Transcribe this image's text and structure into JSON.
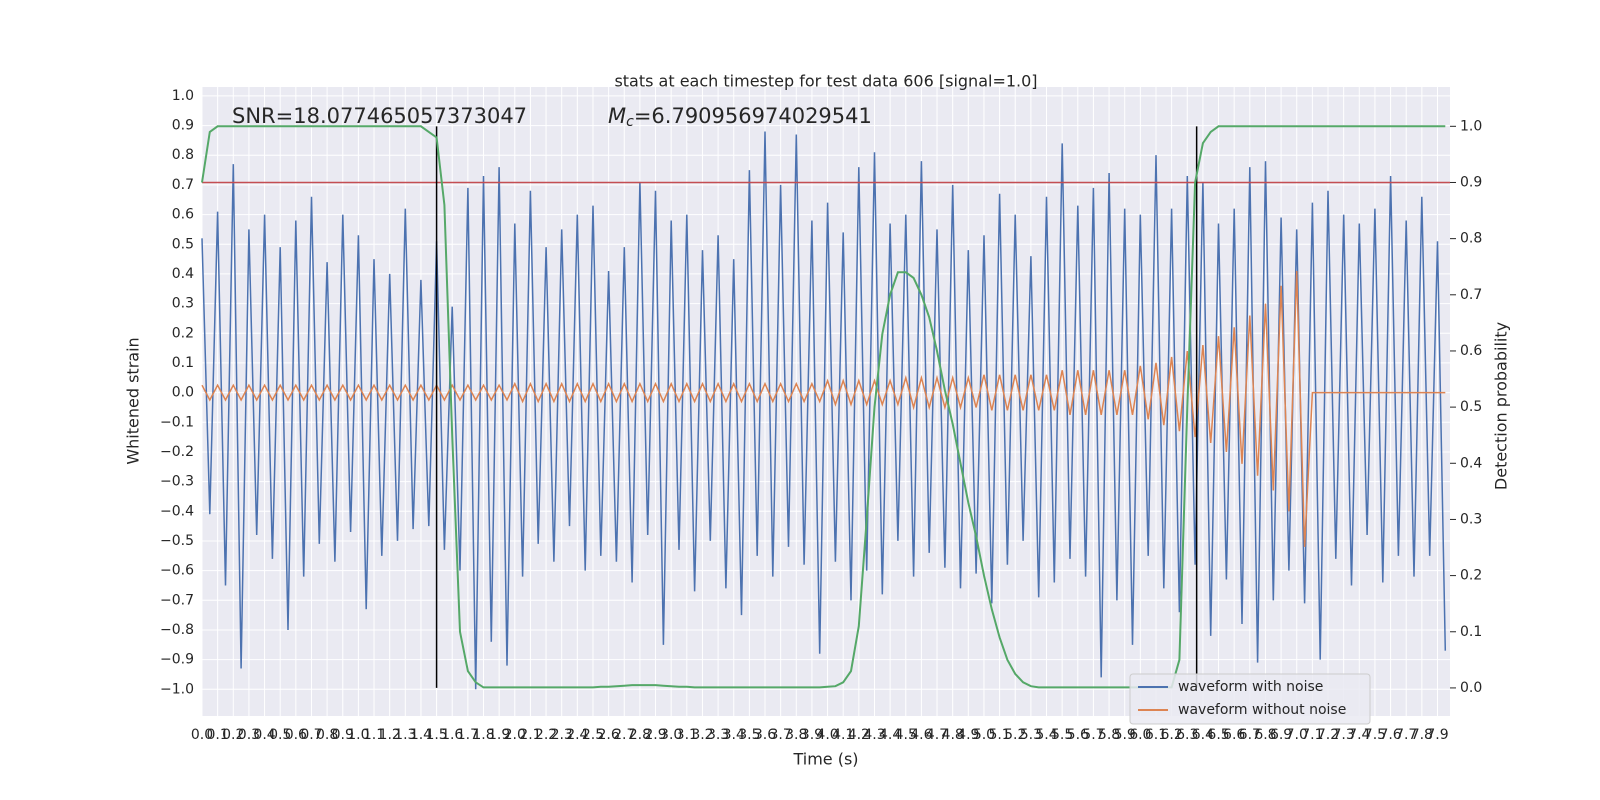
{
  "chart_data": {
    "type": "line",
    "title": "stats at each timestep for test data 606 [signal=1.0]",
    "x_label": "Time (s)",
    "y_label": "Whitened strain",
    "y2_label": "Detection probability",
    "annotations": [
      "SNR=18.077465057373047",
      "=6.790956974029541"
    ],
    "mc_symbol": "M",
    "mc_subscript": "c",
    "grid": true,
    "legend": "lower right",
    "xlim": [
      0,
      7.98
    ],
    "ylim": [
      -1.09,
      1.03
    ],
    "y2lim": [
      -0.05,
      1.07
    ],
    "xticks": [
      {
        "value": 0,
        "label": "0.0"
      },
      0.1,
      0.2,
      0.3,
      0.4,
      0.5,
      0.6,
      0.7,
      0.8,
      0.9,
      {
        "value": 1,
        "label": "1.0"
      },
      1.1,
      1.2,
      1.3,
      1.4,
      1.5,
      1.6,
      1.7,
      1.8,
      1.9,
      {
        "value": 2,
        "label": "2.0"
      },
      2.1,
      2.2,
      2.3,
      2.4,
      2.5,
      2.6,
      2.7,
      2.8,
      2.9,
      {
        "value": 3,
        "label": "3.0"
      },
      3.1,
      3.2,
      3.3,
      3.4,
      3.5,
      3.6,
      3.7,
      3.8,
      3.9,
      {
        "value": 4,
        "label": "4.0"
      },
      4.1,
      4.2,
      4.3,
      4.4,
      4.5,
      4.6,
      4.7,
      4.8,
      4.9,
      {
        "value": 5,
        "label": "5.0"
      },
      5.1,
      5.2,
      5.3,
      5.4,
      5.5,
      5.6,
      5.7,
      5.8,
      5.9,
      {
        "value": 6,
        "label": "6.0"
      },
      6.1,
      6.2,
      6.3,
      6.4,
      6.5,
      6.6,
      6.7,
      6.8,
      6.9,
      {
        "value": 7,
        "label": "7.0"
      },
      7.1,
      7.2,
      7.3,
      7.4,
      7.5,
      7.6,
      7.7,
      7.8,
      7.9
    ],
    "yticks": [
      {
        "value": -1,
        "label": "−1.0"
      },
      {
        "value": -0.9,
        "label": "−0.9"
      },
      {
        "value": -0.8,
        "label": "−0.8"
      },
      {
        "value": -0.7,
        "label": "−0.7"
      },
      {
        "value": -0.6,
        "label": "−0.6"
      },
      {
        "value": -0.5,
        "label": "−0.5"
      },
      {
        "value": -0.4,
        "label": "−0.4"
      },
      {
        "value": -0.3,
        "label": "−0.3"
      },
      {
        "value": -0.2,
        "label": "−0.2"
      },
      {
        "value": -0.1,
        "label": "−0.1"
      },
      {
        "value": 0,
        "label": "0.0"
      },
      0.1,
      0.2,
      0.3,
      0.4,
      0.5,
      0.6,
      0.7,
      0.8,
      0.9,
      {
        "value": 1,
        "label": "1.0"
      }
    ],
    "y2ticks": [
      {
        "value": 0,
        "label": "0.0"
      },
      0.1,
      0.2,
      0.3,
      0.4,
      0.5,
      0.6,
      0.7,
      0.8,
      0.9,
      {
        "value": 1,
        "label": "1.0"
      }
    ],
    "x": [
      0,
      0.05,
      0.1,
      0.15,
      0.2,
      0.25,
      0.3,
      0.35,
      0.4,
      0.45,
      0.5,
      0.55,
      0.6,
      0.65,
      0.7,
      0.75,
      0.8,
      0.85,
      0.9,
      0.95,
      1,
      1.05,
      1.1,
      1.15,
      1.2,
      1.25,
      1.3,
      1.35,
      1.4,
      1.45,
      1.5,
      1.55,
      1.6,
      1.65,
      1.7,
      1.75,
      1.8,
      1.85,
      1.9,
      1.95,
      2,
      2.05,
      2.1,
      2.15,
      2.2,
      2.25,
      2.3,
      2.35,
      2.4,
      2.45,
      2.5,
      2.55,
      2.6,
      2.65,
      2.7,
      2.75,
      2.8,
      2.85,
      2.9,
      2.95,
      3,
      3.05,
      3.1,
      3.15,
      3.2,
      3.25,
      3.3,
      3.35,
      3.4,
      3.45,
      3.5,
      3.55,
      3.6,
      3.65,
      3.7,
      3.75,
      3.8,
      3.85,
      3.9,
      3.95,
      4,
      4.05,
      4.1,
      4.15,
      4.2,
      4.25,
      4.3,
      4.35,
      4.4,
      4.45,
      4.5,
      4.55,
      4.6,
      4.65,
      4.7,
      4.75,
      4.8,
      4.85,
      4.9,
      4.95,
      5,
      5.05,
      5.1,
      5.15,
      5.2,
      5.25,
      5.3,
      5.35,
      5.4,
      5.45,
      5.5,
      5.55,
      5.6,
      5.65,
      5.7,
      5.75,
      5.8,
      5.85,
      5.9,
      5.95,
      6,
      6.05,
      6.1,
      6.15,
      6.2,
      6.25,
      6.3,
      6.35,
      6.4,
      6.45,
      6.5,
      6.55,
      6.6,
      6.65,
      6.7,
      6.75,
      6.8,
      6.85,
      6.9,
      6.95,
      7,
      7.05,
      7.1,
      7.15,
      7.2,
      7.25,
      7.3,
      7.35,
      7.4,
      7.45,
      7.5,
      7.55,
      7.6,
      7.65,
      7.7,
      7.75,
      7.8,
      7.85,
      7.9,
      7.95
    ],
    "series": [
      {
        "name": "waveform with noise",
        "color": "#4c72b0",
        "values": [
          0.52,
          -0.41,
          0.61,
          -0.65,
          0.77,
          -0.93,
          0.55,
          -0.48,
          0.6,
          -0.56,
          0.49,
          -0.8,
          0.58,
          -0.62,
          0.66,
          -0.51,
          0.44,
          -0.57,
          0.6,
          -0.47,
          0.53,
          -0.73,
          0.45,
          -0.55,
          0.4,
          -0.5,
          0.62,
          -0.46,
          0.38,
          -0.45,
          0.51,
          -0.53,
          0.29,
          -0.6,
          0.69,
          -1.0,
          0.73,
          -0.84,
          0.76,
          -0.92,
          0.57,
          -0.62,
          0.68,
          -0.51,
          0.49,
          -0.57,
          0.55,
          -0.45,
          0.6,
          -0.6,
          0.63,
          -0.55,
          0.41,
          -0.57,
          0.49,
          -0.64,
          0.71,
          -0.48,
          0.68,
          -0.85,
          0.58,
          -0.53,
          0.6,
          -0.67,
          0.48,
          -0.5,
          0.53,
          -0.66,
          0.45,
          -0.75,
          0.75,
          -0.55,
          0.88,
          -0.62,
          0.7,
          -0.52,
          0.87,
          -0.58,
          0.58,
          -0.88,
          0.64,
          -0.57,
          0.54,
          -0.7,
          0.76,
          -0.6,
          0.81,
          -0.68,
          0.57,
          -0.5,
          0.6,
          -0.62,
          0.78,
          -0.54,
          0.55,
          -0.59,
          0.7,
          -0.66,
          0.48,
          -0.61,
          0.53,
          -0.71,
          0.67,
          -0.58,
          0.6,
          -0.5,
          0.46,
          -0.69,
          0.66,
          -0.64,
          0.84,
          -0.56,
          0.63,
          -0.62,
          0.69,
          -0.96,
          0.74,
          -0.7,
          0.62,
          -0.85,
          0.6,
          -0.55,
          0.8,
          -0.66,
          0.62,
          -0.74,
          0.73,
          -0.58,
          0.71,
          -0.82,
          0.57,
          -0.63,
          0.62,
          -0.78,
          0.76,
          -0.91,
          0.78,
          -0.7,
          0.59,
          -0.6,
          0.55,
          -0.71,
          0.64,
          -0.9,
          0.68,
          -0.56,
          0.6,
          -0.65,
          0.57,
          -0.48,
          0.62,
          -0.64,
          0.73,
          -0.55,
          0.58,
          -0.62,
          0.66,
          -0.55,
          0.51,
          -0.87
        ]
      },
      {
        "name": "waveform without noise",
        "color": "#dd8452",
        "values": [
          0.025,
          -0.025,
          0.025,
          -0.025,
          0.025,
          -0.025,
          0.025,
          -0.025,
          0.025,
          -0.025,
          0.025,
          -0.025,
          0.025,
          -0.025,
          0.025,
          -0.025,
          0.025,
          -0.025,
          0.025,
          -0.025,
          0.025,
          -0.025,
          0.025,
          -0.025,
          0.025,
          -0.025,
          0.025,
          -0.025,
          0.025,
          -0.025,
          0.025,
          -0.025,
          0.025,
          -0.025,
          0.025,
          -0.025,
          0.025,
          -0.025,
          0.025,
          -0.025,
          0.03,
          -0.03,
          0.03,
          -0.03,
          0.03,
          -0.03,
          0.03,
          -0.03,
          0.03,
          -0.03,
          0.03,
          -0.03,
          0.03,
          -0.03,
          0.03,
          -0.03,
          0.03,
          -0.03,
          0.03,
          -0.03,
          0.03,
          -0.03,
          0.03,
          -0.03,
          0.03,
          -0.03,
          0.03,
          -0.03,
          0.03,
          -0.03,
          0.03,
          -0.03,
          0.03,
          -0.03,
          0.03,
          -0.03,
          0.03,
          -0.03,
          0.03,
          -0.03,
          0.04,
          -0.04,
          0.04,
          -0.04,
          0.04,
          -0.04,
          0.04,
          -0.04,
          0.04,
          -0.04,
          0.05,
          -0.05,
          0.05,
          -0.05,
          0.05,
          -0.05,
          0.05,
          -0.05,
          0.05,
          -0.05,
          0.06,
          -0.06,
          0.06,
          -0.06,
          0.06,
          -0.06,
          0.06,
          -0.06,
          0.06,
          -0.06,
          0.075,
          -0.075,
          0.075,
          -0.075,
          0.075,
          -0.075,
          0.075,
          -0.075,
          0.075,
          -0.075,
          0.09,
          -0.09,
          0.1,
          -0.11,
          0.12,
          -0.13,
          0.14,
          -0.15,
          0.16,
          -0.17,
          0.19,
          -0.2,
          0.22,
          -0.24,
          0.26,
          -0.28,
          0.3,
          -0.33,
          0.36,
          -0.4,
          0.41,
          -0.52,
          0,
          0,
          0,
          0,
          0,
          0,
          0,
          0,
          0,
          0,
          0,
          0,
          0,
          0,
          0,
          0,
          0,
          0
        ]
      }
    ],
    "detection": {
      "color": "#55a868",
      "axis": "y2",
      "values": [
        0.9,
        0.99,
        1,
        1,
        1,
        1,
        1,
        1,
        1,
        1,
        1,
        1,
        1,
        1,
        1,
        1,
        1,
        1,
        1,
        1,
        1,
        1,
        1,
        1,
        1,
        1,
        1,
        1,
        1,
        0.99,
        0.98,
        0.86,
        0.45,
        0.1,
        0.03,
        0.01,
        0.001,
        0.001,
        0.001,
        0.001,
        0.001,
        0.001,
        0.001,
        0.001,
        0.001,
        0.001,
        0.001,
        0.001,
        0.001,
        0.001,
        0.001,
        0.002,
        0.002,
        0.003,
        0.004,
        0.005,
        0.005,
        0.005,
        0.005,
        0.004,
        0.003,
        0.002,
        0.002,
        0.001,
        0.001,
        0.001,
        0.001,
        0.001,
        0.001,
        0.001,
        0.001,
        0.001,
        0.001,
        0.001,
        0.001,
        0.001,
        0.001,
        0.001,
        0.001,
        0.001,
        0.002,
        0.003,
        0.01,
        0.03,
        0.11,
        0.3,
        0.5,
        0.63,
        0.7,
        0.74,
        0.74,
        0.73,
        0.7,
        0.66,
        0.6,
        0.53,
        0.47,
        0.4,
        0.33,
        0.27,
        0.2,
        0.14,
        0.09,
        0.05,
        0.025,
        0.01,
        0.003,
        0.001,
        0.001,
        0.001,
        0.001,
        0.001,
        0.001,
        0.001,
        0.001,
        0.001,
        0.001,
        0.001,
        0.001,
        0.001,
        0.001,
        0.001,
        0.001,
        0.001,
        0.001,
        0.05,
        0.5,
        0.9,
        0.97,
        0.99,
        1,
        1,
        1,
        1,
        1,
        1,
        1,
        1,
        1,
        1,
        1,
        1,
        1,
        1,
        1,
        1,
        1,
        1,
        1,
        1,
        1,
        1,
        1,
        1,
        1,
        1,
        1,
        1,
        1,
        1
      ]
    },
    "threshold": {
      "value": 0.9,
      "axis": "y2",
      "color": "#c44e52"
    },
    "vlines": {
      "x": [
        1.5,
        6.36
      ],
      "y2_range": [
        0,
        1
      ],
      "color": "#000000"
    }
  }
}
